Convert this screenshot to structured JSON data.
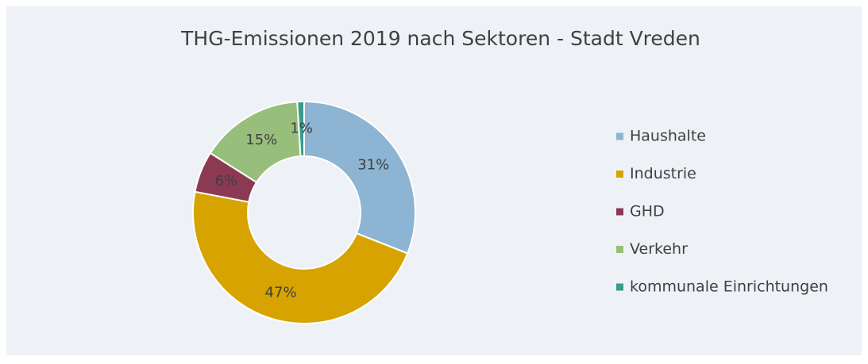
{
  "chart_data": {
    "type": "pie",
    "title": "THG-Emissionen 2019 nach Sektoren - Stadt Vreden",
    "categories": [
      "Haushalte",
      "Industrie",
      "GHD",
      "Verkehr",
      "kommunale Einrichtungen"
    ],
    "values": [
      31,
      47,
      6,
      15,
      1
    ],
    "value_labels": [
      "31%",
      "47%",
      "6%",
      "15%",
      "1%"
    ],
    "colors": [
      "#8db4d2",
      "#d7a300",
      "#8c3a54",
      "#98be7b",
      "#3a9c8e"
    ],
    "legend": "right"
  }
}
